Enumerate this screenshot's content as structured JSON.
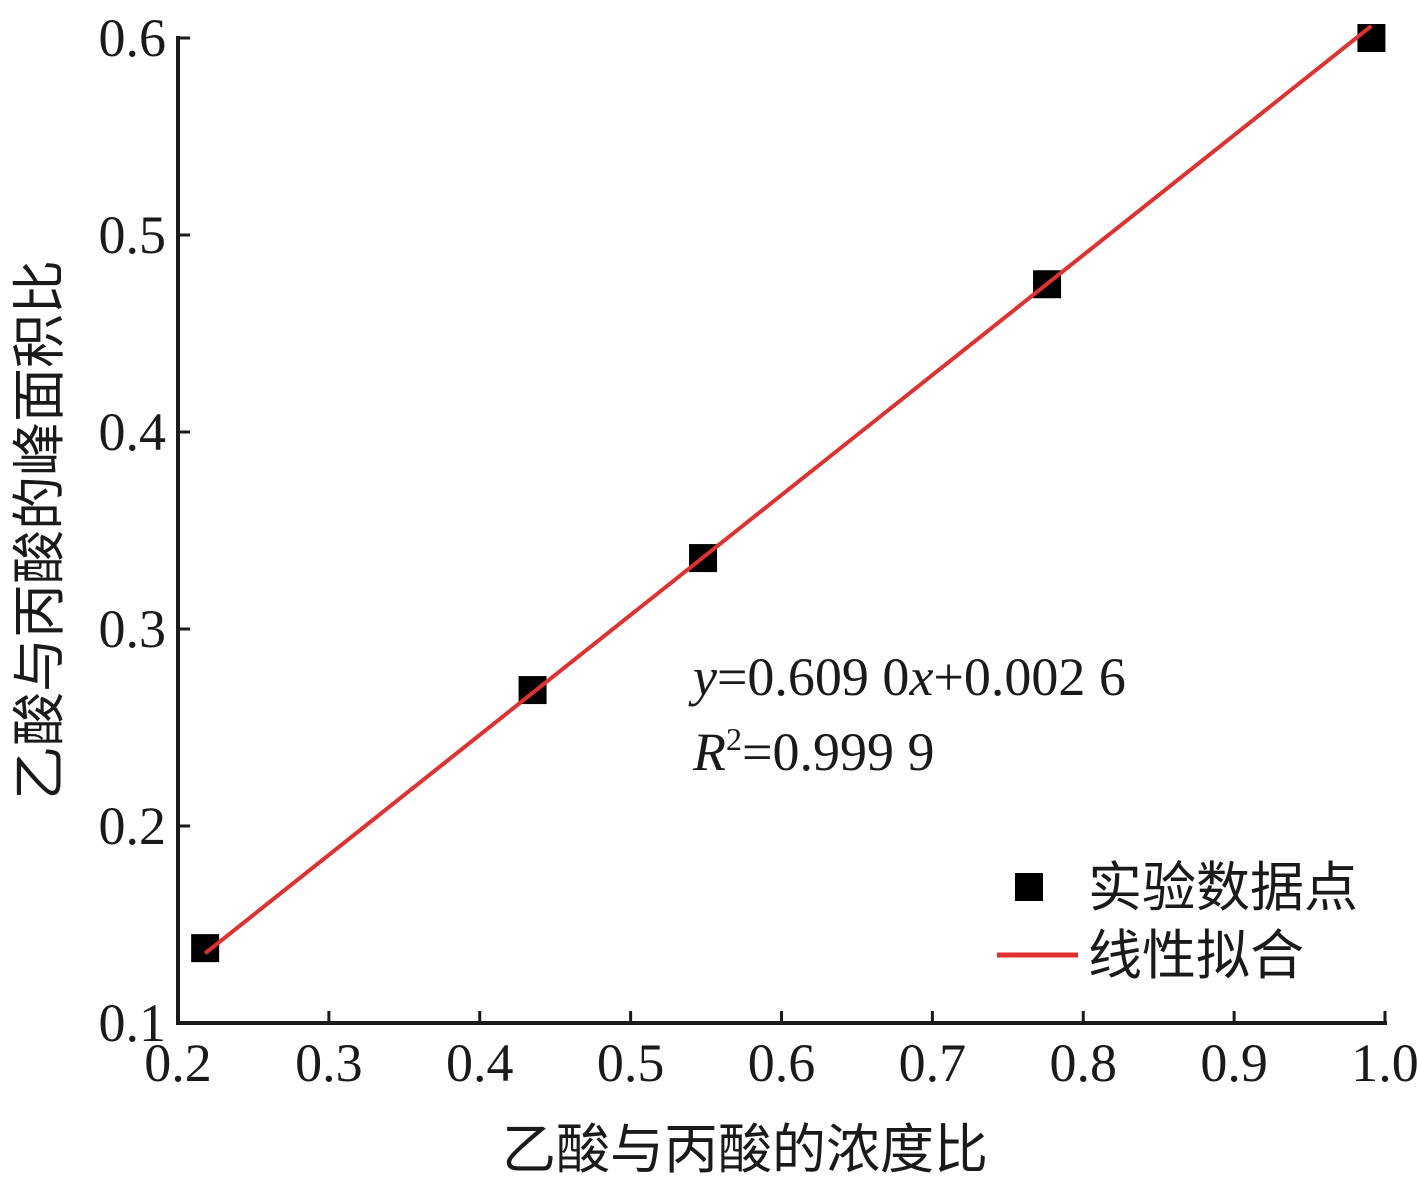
{
  "chart_data": {
    "type": "scatter",
    "x_label": "乙酸与丙酸的浓度比",
    "y_label": "乙酸与丙酸的峰面积比",
    "xlim": [
      0.2,
      1.0
    ],
    "xticks": [
      0.2,
      0.3,
      0.4,
      0.5,
      0.6,
      0.7,
      0.8,
      0.9,
      {
        "value": 1.0,
        "label": "1.0"
      }
    ],
    "ylim": [
      0.1,
      0.6
    ],
    "yticks": [
      0.1,
      0.2,
      0.3,
      0.4,
      0.5,
      0.6
    ],
    "series": [
      {
        "name": "实验数据点",
        "type": "scatter",
        "color": "#000000",
        "x": [
          0.218,
          0.435,
          0.548,
          0.776,
          0.991
        ],
        "values": [
          0.138,
          0.269,
          0.336,
          0.475,
          0.6
        ]
      },
      {
        "name": "线性拟合",
        "type": "line",
        "color": "#e03030",
        "x": [
          0.218,
          0.991
        ],
        "values": [
          0.1354,
          0.6061
        ]
      }
    ],
    "equation": [
      "y",
      "=0.609 0",
      "x",
      "+0.002 6"
    ],
    "r_squared": [
      "R",
      "2",
      "=0.999 9"
    ],
    "legend": "lower right"
  }
}
